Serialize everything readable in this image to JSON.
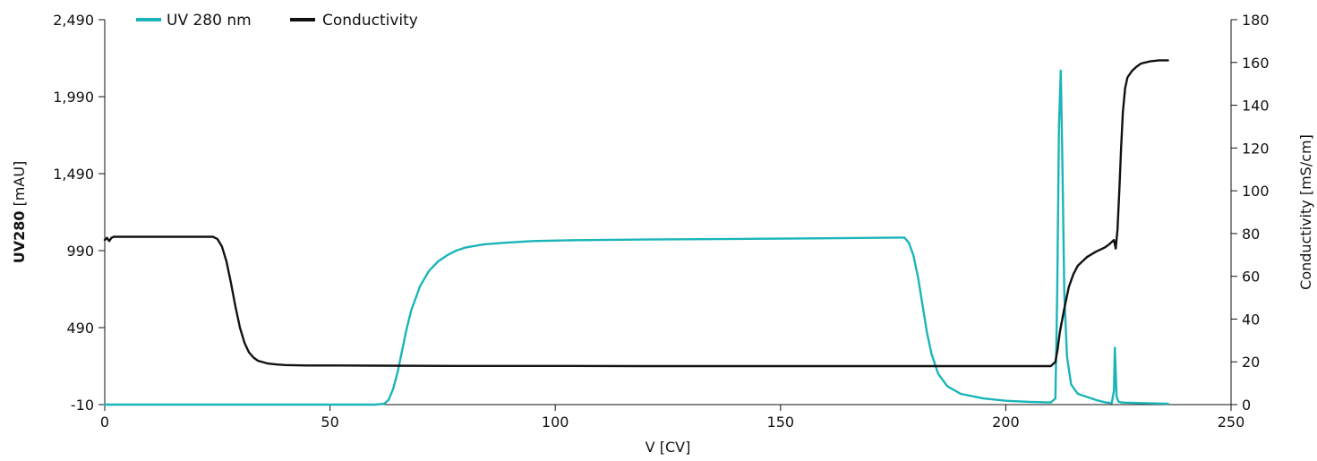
{
  "chart_data": {
    "type": "line",
    "xlabel": "V [CV]",
    "ylabel_left_bold": "UV280",
    "ylabel_left_unit": " [mAU]",
    "ylabel_right": "Conductivity [mS/cm]",
    "xlim": [
      0,
      250
    ],
    "ylim_left": [
      -10,
      2490
    ],
    "ylim_right": [
      0,
      180
    ],
    "x_ticks": [
      0,
      50,
      100,
      150,
      200,
      250
    ],
    "x_tick_labels": [
      "0",
      "50",
      "100",
      "150",
      "200",
      "250"
    ],
    "y_left_ticks": [
      -10,
      490,
      990,
      1490,
      1990,
      2490
    ],
    "y_left_tick_labels": [
      "-10",
      "490",
      "990",
      "1,490",
      "1,990",
      "2,490"
    ],
    "y_right_ticks": [
      0,
      20,
      40,
      60,
      80,
      100,
      120,
      140,
      160,
      180
    ],
    "y_right_tick_labels": [
      "0",
      "20",
      "40",
      "60",
      "80",
      "100",
      "120",
      "140",
      "160",
      "180"
    ],
    "grid": false,
    "legend_position": "top-left",
    "series": [
      {
        "name": "UV 280 nm",
        "axis": "left",
        "color": "#1ab5b8",
        "x": [
          0,
          60,
          62,
          63,
          64,
          65,
          66,
          67,
          68,
          70,
          72,
          74,
          76,
          78,
          80,
          84,
          88,
          95,
          105,
          120,
          140,
          160,
          176,
          177.5,
          178.5,
          179.5,
          180.5,
          181.5,
          182.5,
          183.5,
          185,
          187,
          190,
          195,
          200,
          205,
          210,
          211,
          211.4,
          211.8,
          212.2,
          212.6,
          213,
          213.6,
          214.5,
          216,
          218,
          220,
          222,
          223.5,
          224,
          224.2,
          224.4,
          224.6,
          225,
          225.5,
          226.5,
          230,
          236
        ],
        "y": [
          -10,
          -10,
          -5,
          20,
          90,
          200,
          340,
          480,
          600,
          760,
          860,
          920,
          960,
          990,
          1010,
          1030,
          1040,
          1052,
          1058,
          1062,
          1066,
          1070,
          1075,
          1075,
          1040,
          960,
          820,
          640,
          460,
          320,
          190,
          110,
          60,
          30,
          15,
          8,
          4,
          30,
          700,
          1800,
          2160,
          1500,
          700,
          300,
          120,
          60,
          40,
          20,
          5,
          0,
          80,
          360,
          200,
          40,
          10,
          5,
          3,
          0,
          -5
        ]
      },
      {
        "name": "Conductivity",
        "axis": "right",
        "color": "#111111",
        "x": [
          0,
          0.5,
          1,
          1.5,
          2,
          4,
          10,
          20,
          24,
          25,
          26,
          27,
          28,
          29,
          30,
          31,
          32,
          33,
          34,
          36,
          38,
          40,
          45,
          50,
          60,
          80,
          100,
          120,
          150,
          180,
          200,
          210,
          211,
          211.5,
          212,
          213,
          214,
          215,
          216,
          218,
          220,
          222,
          223,
          223.5,
          224,
          224.4,
          224.8,
          225.2,
          225.6,
          226,
          226.5,
          227,
          228,
          229,
          230,
          232,
          234,
          236
        ],
        "y": [
          77,
          78,
          76.5,
          78,
          78.5,
          78.5,
          78.5,
          78.5,
          78.5,
          77.5,
          74,
          67,
          57,
          46,
          36,
          29,
          24.5,
          22,
          20.5,
          19.3,
          18.8,
          18.5,
          18.3,
          18.3,
          18.2,
          18.1,
          18.1,
          18.0,
          18.0,
          18.0,
          18.0,
          18.0,
          20,
          26,
          34,
          45,
          55,
          61,
          65,
          69,
          71.5,
          73.5,
          75,
          76,
          77,
          73,
          82,
          100,
          120,
          137,
          148,
          153,
          156,
          158,
          159.5,
          160.5,
          161,
          161
        ]
      }
    ]
  }
}
